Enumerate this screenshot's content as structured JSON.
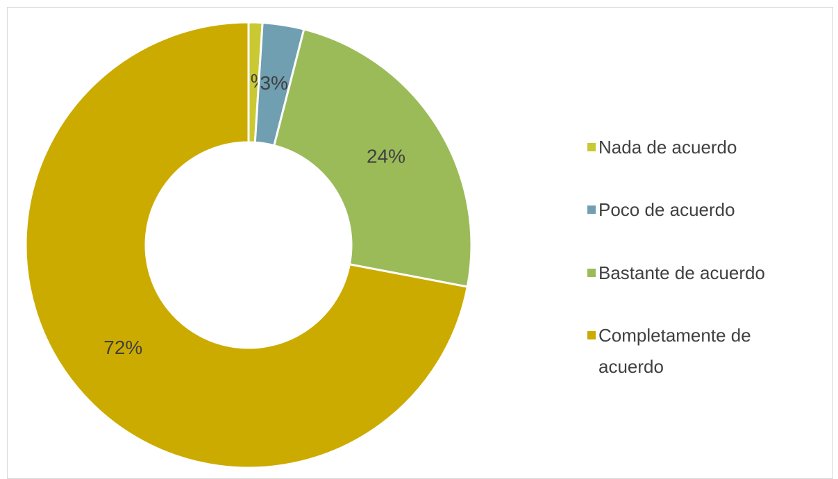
{
  "chart_data": {
    "type": "donut",
    "categories": [
      "Nada de acuerdo",
      "Poco de acuerdo",
      "Bastante de acuerdo",
      "Completamente de acuerdo"
    ],
    "values": [
      1,
      3,
      24,
      72
    ],
    "value_labels": [
      "1%",
      "3%",
      "24%",
      "72%"
    ],
    "colors": [
      "#c9c933",
      "#6f9fb1",
      "#9bbb59",
      "#ccab00"
    ],
    "legend": "right"
  }
}
